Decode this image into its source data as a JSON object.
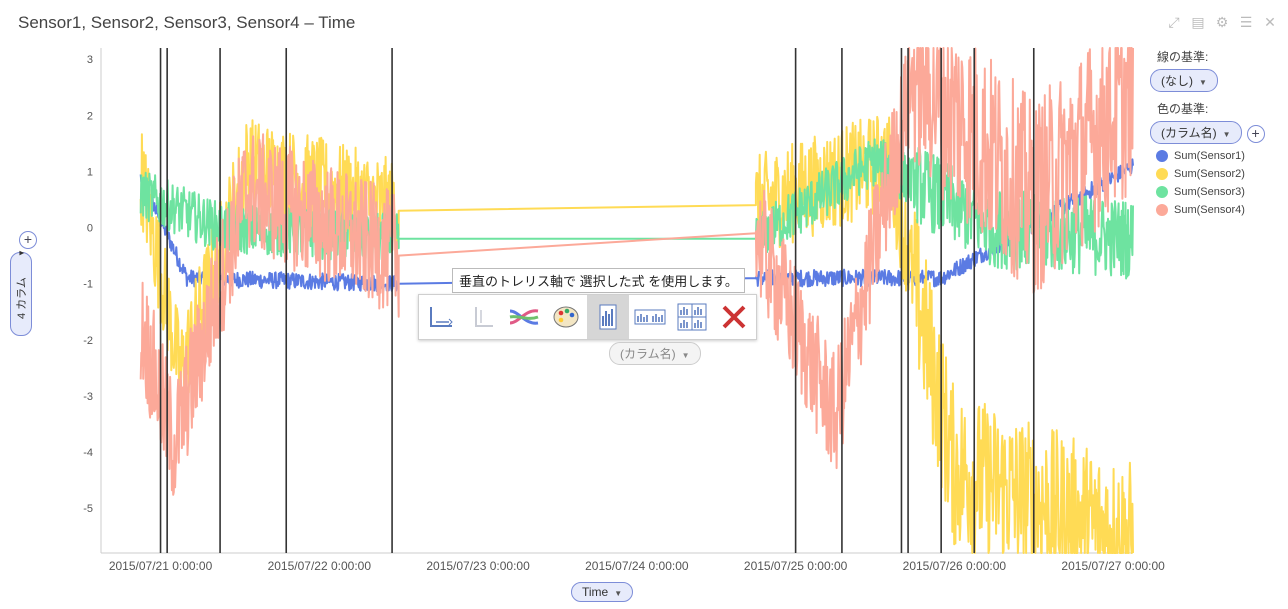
{
  "header": {
    "title": "Sensor1, Sensor2, Sensor3, Sensor4 – Time"
  },
  "icons": [
    "expand-icon",
    "details-icon",
    "settings-icon",
    "list-icon",
    "close-icon"
  ],
  "legend": {
    "line_by_label": "線の基準:",
    "line_by_value": "(なし)",
    "color_by_label": "色の基準:",
    "color_by_value": "(カラム名)",
    "items": [
      {
        "label": "Sum(Sensor1)",
        "color": "#5b7be3"
      },
      {
        "label": "Sum(Sensor2)",
        "color": "#ffdb55"
      },
      {
        "label": "Sum(Sensor3)",
        "color": "#6ee3a0"
      },
      {
        "label": "Sum(Sensor4)",
        "color": "#fca999"
      }
    ]
  },
  "axes": {
    "y_selector": "4 カラム",
    "x_selector": "Time"
  },
  "trellis": {
    "tooltip": "垂直のトレリス軸で 選択した式 を使用します。",
    "column_selector": "(カラム名)",
    "buttons": [
      "axes-icon",
      "trellis-off-icon",
      "lines-icon",
      "palette-icon",
      "trellis-vertical-icon",
      "trellis-horizontal-icon",
      "trellis-grid-icon",
      "remove-icon"
    ]
  },
  "chart_data": {
    "type": "line",
    "x_tick_labels": [
      "2015/07/21 0:00:00",
      "2015/07/22 0:00:00",
      "2015/07/23 0:00:00",
      "2015/07/24 0:00:00",
      "2015/07/25 0:00:00",
      "2015/07/26 0:00:00",
      "2015/07/27 0:00:00"
    ],
    "y_ticks": [
      3,
      2,
      1,
      0,
      -1,
      -2,
      -3,
      -4,
      -5
    ],
    "ylim": [
      -5.8,
      3.2
    ],
    "xlim": [
      "2015/07/20 15:00:00",
      "2015/07/27 03:00:00"
    ],
    "vertical_lines": [
      "2015/07/21 00:00:00",
      "2015/07/21 01:00:00",
      "2015/07/21 09:00:00",
      "2015/07/21 19:00:00",
      "2015/07/22 11:00:00",
      "2015/07/25 00:00:00",
      "2015/07/25 07:00:00",
      "2015/07/25 16:00:00",
      "2015/07/25 17:00:00",
      "2015/07/25 22:00:00",
      "2015/07/26 03:00:00",
      "2015/07/26 12:00:00"
    ],
    "segments": [
      {
        "start": "2015/07/20 21:00:00",
        "end": "2015/07/22 12:00:00"
      },
      {
        "start": "2015/07/24 18:00:00",
        "end": "2015/07/27 03:00:00"
      }
    ],
    "series": [
      {
        "name": "Sum(Sensor1)",
        "color": "#5b7be3",
        "points": [
          [
            "2015/07/20 21:00:00",
            0.9
          ],
          [
            "2015/07/21 04:00:00",
            -0.9
          ],
          [
            "2015/07/22 12:00:00",
            -1.0
          ],
          [
            "2015/07/24 18:00:00",
            -0.9
          ],
          [
            "2015/07/25 22:00:00",
            -0.9
          ],
          [
            "2015/07/27 03:00:00",
            1.1
          ]
        ]
      },
      {
        "name": "Sum(Sensor2)",
        "color": "#ffdb55",
        "points": [
          [
            "2015/07/20 21:00:00",
            1.0
          ],
          [
            "2015/07/21 03:00:00",
            -2.6
          ],
          [
            "2015/07/21 13:00:00",
            1.1
          ],
          [
            "2015/07/22 12:00:00",
            0.3
          ],
          [
            "2015/07/24 18:00:00",
            0.4
          ],
          [
            "2015/07/25 14:00:00",
            1.2
          ],
          [
            "2015/07/26 00:00:00",
            -4.3
          ],
          [
            "2015/07/27 03:00:00",
            -5.6
          ]
        ]
      },
      {
        "name": "Sum(Sensor3)",
        "color": "#6ee3a0",
        "points": [
          [
            "2015/07/20 21:00:00",
            0.6
          ],
          [
            "2015/07/21 09:00:00",
            0.0
          ],
          [
            "2015/07/22 12:00:00",
            -0.2
          ],
          [
            "2015/07/24 18:00:00",
            -0.2
          ],
          [
            "2015/07/25 12:00:00",
            1.2
          ],
          [
            "2015/07/26 06:00:00",
            0.0
          ],
          [
            "2015/07/27 03:00:00",
            -0.2
          ]
        ]
      },
      {
        "name": "Sum(Sensor4)",
        "color": "#fca999",
        "points": [
          [
            "2015/07/20 21:00:00",
            -1.7
          ],
          [
            "2015/07/21 02:00:00",
            -3.9
          ],
          [
            "2015/07/21 13:00:00",
            0.7
          ],
          [
            "2015/07/22 12:00:00",
            -0.5
          ],
          [
            "2015/07/24 18:00:00",
            -0.1
          ],
          [
            "2015/07/25 06:00:00",
            -3.4
          ],
          [
            "2015/07/25 18:00:00",
            2.8
          ],
          [
            "2015/07/26 12:00:00",
            0.5
          ],
          [
            "2015/07/27 03:00:00",
            2.4
          ]
        ]
      }
    ]
  }
}
